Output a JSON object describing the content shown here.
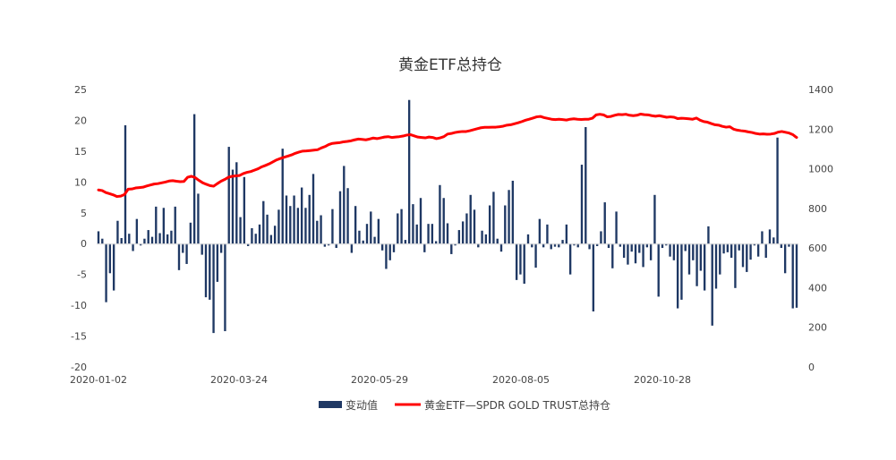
{
  "chart_data": {
    "type": "bar+line",
    "title": "黄金ETF总持仓",
    "x_ticks": [
      "2020-01-02",
      "2020-03-24",
      "2020-05-29",
      "2020-08-05",
      "2020-10-28"
    ],
    "y_left": {
      "min": -20,
      "max": 25,
      "step": 5,
      "ticks": [
        "25",
        "20",
        "15",
        "10",
        "5",
        "0",
        "-5",
        "-10",
        "-15",
        "-20"
      ]
    },
    "y_right": {
      "min": 0,
      "max": 1400,
      "step": 200,
      "ticks": [
        "1400",
        "1200",
        "1000",
        "800",
        "600",
        "400",
        "200",
        "0"
      ]
    },
    "series": [
      {
        "name": "变动值",
        "type": "bar",
        "axis": "left",
        "color": "#1f3864",
        "values": [
          2,
          0.8,
          -9.5,
          -4.8,
          -7.6,
          3.7,
          0.9,
          19.2,
          1.6,
          -1.2,
          4,
          -0.3,
          0.8,
          2.2,
          1.1,
          6,
          1.7,
          5.8,
          1.5,
          2.1,
          6,
          -4.3,
          -1.5,
          -3.3,
          3.4,
          21,
          8.1,
          -1.8,
          -8.7,
          -9.1,
          -14.5,
          -6.2,
          -1.5,
          -14.2,
          15.7,
          12,
          13.2,
          4.3,
          10.8,
          -0.4,
          2.5,
          1.6,
          3.1,
          6.9,
          4.7,
          1.4,
          2.9,
          5.5,
          15.4,
          7.8,
          6.1,
          7.8,
          5.8,
          9.1,
          5.8,
          7.9,
          11.3,
          3.7,
          4.6,
          -0.5,
          -0.3,
          5.6,
          -0.7,
          8.5,
          12.6,
          9,
          -1.5,
          6.1,
          2.1,
          0.5,
          3.2,
          5.2,
          1.1,
          4,
          -1.1,
          -4.1,
          -2.7,
          -1.4,
          4.9,
          5.6,
          0.6,
          23.3,
          6.4,
          3.1,
          7.4,
          -1.4,
          3.2,
          3.2,
          0.4,
          9.5,
          7.4,
          3.3,
          -1.7,
          -0.3,
          2.2,
          3.6,
          4.9,
          7.9,
          5.5,
          -0.6,
          2.1,
          1.5,
          6.2,
          8.4,
          0.8,
          -1.3,
          6.2,
          8.7,
          10.2,
          -5.9,
          -5,
          -6.5,
          1.5,
          -0.6,
          -3.9,
          4,
          -0.6,
          3.1,
          -0.9,
          -0.5,
          -0.6,
          0.6,
          3.1,
          -5,
          -0.3,
          -0.6,
          12.8,
          18.9,
          -0.9,
          -11,
          -0.4,
          2,
          6.7,
          -0.7,
          -4,
          5.2,
          -0.5,
          -2.3,
          -3.4,
          -1.3,
          -3.2,
          -1.5,
          -3.8,
          -0.6,
          -2.7,
          7.9,
          -8.6,
          -0.7,
          -0.3,
          -2.1,
          -2.7,
          -10.5,
          -9.1,
          -1.2,
          -5,
          -2.7,
          -6.9,
          -4.4,
          -7.6,
          2.8,
          -13.3,
          -7.3,
          -5,
          -1.6,
          -1.4,
          -2.3,
          -7.2,
          -1.1,
          -3.8,
          -4.6,
          -2.6,
          -0.3,
          -2.1,
          2,
          -2.3,
          2.3,
          1,
          17.2,
          -0.7,
          -4.8,
          -0.5,
          -10.5,
          -10.4
        ]
      },
      {
        "name": "黄金ETF—SPDR GOLD TRUST总持仓",
        "type": "line",
        "axis": "right",
        "color": "#ff0000",
        "points": [
          [
            0,
            893
          ],
          [
            5,
            890
          ],
          [
            10,
            880
          ],
          [
            15,
            874
          ],
          [
            20,
            868
          ],
          [
            25,
            860
          ],
          [
            30,
            862
          ],
          [
            35,
            870
          ],
          [
            40,
            897
          ],
          [
            45,
            898
          ],
          [
            50,
            903
          ],
          [
            55,
            905
          ],
          [
            60,
            907
          ],
          [
            65,
            913
          ],
          [
            70,
            918
          ],
          [
            75,
            923
          ],
          [
            80,
            925
          ],
          [
            85,
            929
          ],
          [
            90,
            933
          ],
          [
            95,
            938
          ],
          [
            100,
            940
          ],
          [
            105,
            937
          ],
          [
            110,
            935
          ],
          [
            115,
            936
          ],
          [
            120,
            957
          ],
          [
            125,
            962
          ],
          [
            130,
            956
          ],
          [
            135,
            942
          ],
          [
            140,
            930
          ],
          [
            145,
            922
          ],
          [
            150,
            915
          ],
          [
            155,
            912
          ],
          [
            160,
            925
          ],
          [
            165,
            937
          ],
          [
            170,
            946
          ],
          [
            175,
            957
          ],
          [
            180,
            962
          ],
          [
            185,
            964
          ],
          [
            190,
            966
          ],
          [
            195,
            976
          ],
          [
            200,
            982
          ],
          [
            205,
            986
          ],
          [
            210,
            993
          ],
          [
            215,
            1000
          ],
          [
            220,
            1010
          ],
          [
            225,
            1017
          ],
          [
            230,
            1025
          ],
          [
            235,
            1035
          ],
          [
            240,
            1045
          ],
          [
            245,
            1052
          ],
          [
            250,
            1058
          ],
          [
            255,
            1064
          ],
          [
            260,
            1070
          ],
          [
            265,
            1078
          ],
          [
            270,
            1084
          ],
          [
            275,
            1089
          ],
          [
            280,
            1090
          ],
          [
            285,
            1092
          ],
          [
            290,
            1094
          ],
          [
            295,
            1096
          ],
          [
            300,
            1105
          ],
          [
            305,
            1112
          ],
          [
            310,
            1122
          ],
          [
            315,
            1128
          ],
          [
            320,
            1130
          ],
          [
            325,
            1132
          ],
          [
            330,
            1136
          ],
          [
            335,
            1138
          ],
          [
            340,
            1141
          ],
          [
            345,
            1146
          ],
          [
            350,
            1150
          ],
          [
            355,
            1148
          ],
          [
            360,
            1146
          ],
          [
            365,
            1150
          ],
          [
            370,
            1155
          ],
          [
            375,
            1152
          ],
          [
            380,
            1156
          ],
          [
            385,
            1160
          ],
          [
            390,
            1162
          ],
          [
            395,
            1158
          ],
          [
            400,
            1160
          ],
          [
            405,
            1162
          ],
          [
            410,
            1165
          ],
          [
            415,
            1170
          ],
          [
            420,
            1172
          ],
          [
            425,
            1166
          ],
          [
            430,
            1160
          ],
          [
            435,
            1158
          ],
          [
            440,
            1156
          ],
          [
            445,
            1160
          ],
          [
            450,
            1158
          ],
          [
            455,
            1152
          ],
          [
            460,
            1156
          ],
          [
            465,
            1162
          ],
          [
            470,
            1175
          ],
          [
            475,
            1178
          ],
          [
            480,
            1183
          ],
          [
            485,
            1186
          ],
          [
            490,
            1188
          ],
          [
            495,
            1188
          ],
          [
            500,
            1192
          ],
          [
            505,
            1197
          ],
          [
            510,
            1202
          ],
          [
            515,
            1207
          ],
          [
            520,
            1209
          ],
          [
            525,
            1209
          ],
          [
            530,
            1210
          ],
          [
            535,
            1210
          ],
          [
            540,
            1212
          ],
          [
            545,
            1215
          ],
          [
            550,
            1220
          ],
          [
            555,
            1222
          ],
          [
            560,
            1227
          ],
          [
            565,
            1232
          ],
          [
            570,
            1238
          ],
          [
            575,
            1245
          ],
          [
            580,
            1250
          ],
          [
            585,
            1256
          ],
          [
            590,
            1262
          ],
          [
            595,
            1264
          ],
          [
            600,
            1258
          ],
          [
            605,
            1254
          ],
          [
            610,
            1250
          ],
          [
            615,
            1248
          ],
          [
            620,
            1250
          ],
          [
            625,
            1248
          ],
          [
            630,
            1246
          ],
          [
            635,
            1250
          ],
          [
            640,
            1252
          ],
          [
            645,
            1250
          ],
          [
            650,
            1249
          ],
          [
            655,
            1250
          ],
          [
            660,
            1250
          ],
          [
            665,
            1255
          ],
          [
            670,
            1272
          ],
          [
            675,
            1275
          ],
          [
            680,
            1272
          ],
          [
            685,
            1262
          ],
          [
            690,
            1264
          ],
          [
            695,
            1270
          ],
          [
            700,
            1274
          ],
          [
            705,
            1273
          ],
          [
            710,
            1275
          ],
          [
            715,
            1270
          ],
          [
            720,
            1268
          ],
          [
            725,
            1270
          ],
          [
            730,
            1276
          ],
          [
            735,
            1273
          ],
          [
            740,
            1272
          ],
          [
            745,
            1268
          ],
          [
            750,
            1265
          ],
          [
            755,
            1268
          ],
          [
            760,
            1264
          ],
          [
            765,
            1260
          ],
          [
            770,
            1262
          ],
          [
            775,
            1260
          ],
          [
            780,
            1253
          ],
          [
            785,
            1255
          ],
          [
            790,
            1254
          ],
          [
            795,
            1252
          ],
          [
            800,
            1250
          ],
          [
            805,
            1256
          ],
          [
            810,
            1245
          ],
          [
            815,
            1238
          ],
          [
            820,
            1235
          ],
          [
            825,
            1228
          ],
          [
            830,
            1222
          ],
          [
            835,
            1220
          ],
          [
            840,
            1214
          ],
          [
            845,
            1210
          ],
          [
            850,
            1212
          ],
          [
            855,
            1200
          ],
          [
            860,
            1195
          ],
          [
            865,
            1192
          ],
          [
            870,
            1190
          ],
          [
            875,
            1186
          ],
          [
            880,
            1183
          ],
          [
            885,
            1178
          ],
          [
            890,
            1175
          ],
          [
            895,
            1176
          ],
          [
            900,
            1174
          ],
          [
            905,
            1175
          ],
          [
            910,
            1178
          ],
          [
            915,
            1185
          ],
          [
            920,
            1188
          ],
          [
            925,
            1184
          ],
          [
            930,
            1180
          ],
          [
            935,
            1172
          ],
          [
            938,
            1163
          ],
          [
            940,
            1158
          ]
        ]
      }
    ],
    "legend_position": "bottom",
    "grid": false
  }
}
